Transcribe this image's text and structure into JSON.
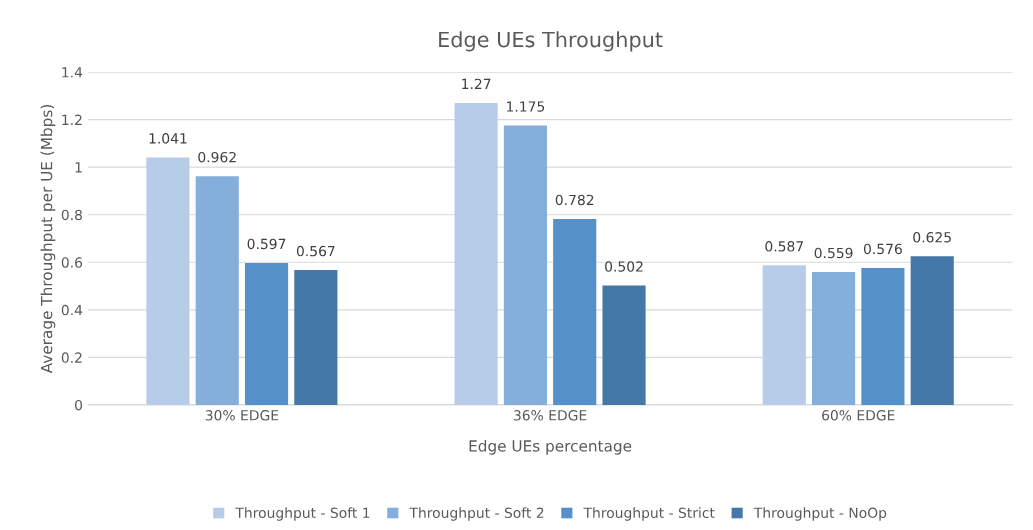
{
  "chart_data": {
    "type": "bar",
    "title": "Edge UEs Throughput",
    "xlabel": "Edge UEs percentage",
    "ylabel": "Average Throughput per UE (Mbps)",
    "categories": [
      "30% EDGE",
      "36% EDGE",
      "60% EDGE"
    ],
    "series": [
      {
        "name": "Throughput - Soft 1",
        "color": "#b7cce8",
        "values": [
          1.041,
          1.27,
          0.587
        ]
      },
      {
        "name": "Throughput - Soft 2",
        "color": "#84afdc",
        "values": [
          0.962,
          1.175,
          0.559
        ]
      },
      {
        "name": "Throughput - Strict",
        "color": "#5591c8",
        "values": [
          0.597,
          0.782,
          0.576
        ]
      },
      {
        "name": "Throughput - NoOp",
        "color": "#4478a8",
        "values": [
          0.567,
          0.502,
          0.625
        ]
      }
    ],
    "ylim": [
      0,
      1.4
    ],
    "yticks": [
      0,
      0.2,
      0.4,
      0.6,
      0.8,
      1,
      1.2,
      1.4
    ],
    "grid": "y",
    "legend": "bottom",
    "data_labels": true
  }
}
